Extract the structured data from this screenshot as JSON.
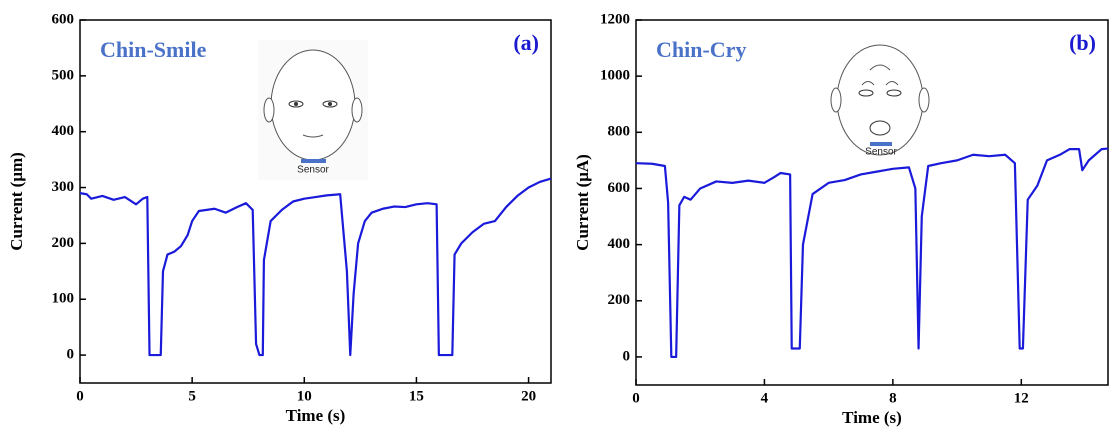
{
  "chart_data": [
    {
      "type": "line",
      "title": "Chin-Smile",
      "label": "(a)",
      "sensor_label": "Sensor",
      "x_label": "Time (s)",
      "y_label": "Current (μm)",
      "color": "#1a1adb",
      "xlim": [
        0,
        21
      ],
      "ylim": [
        -50,
        600
      ],
      "xticks": [
        0,
        5,
        10,
        15,
        20
      ],
      "yticks": [
        0,
        100,
        200,
        300,
        400,
        500,
        600
      ],
      "x": [
        0,
        0.3,
        0.5,
        1,
        1.5,
        2,
        2.5,
        2.8,
        3.0,
        3.1,
        3.6,
        3.7,
        3.9,
        4.2,
        4.5,
        4.8,
        5.0,
        5.3,
        6,
        6.5,
        7,
        7.4,
        7.7,
        7.85,
        8.0,
        8.15,
        8.2,
        8.5,
        9,
        9.5,
        10,
        10.5,
        11,
        11.6,
        11.9,
        12.05,
        12.2,
        12.4,
        12.7,
        13,
        13.5,
        14,
        14.5,
        15,
        15.5,
        15.9,
        16.0,
        16.6,
        16.7,
        17,
        17.5,
        18,
        18.5,
        19,
        19.5,
        20,
        20.5,
        21
      ],
      "values": [
        290,
        288,
        280,
        285,
        278,
        283,
        270,
        280,
        283,
        0,
        0,
        150,
        180,
        185,
        195,
        215,
        240,
        258,
        262,
        255,
        265,
        272,
        260,
        20,
        0,
        0,
        170,
        240,
        260,
        275,
        280,
        283,
        286,
        288,
        150,
        0,
        110,
        200,
        240,
        255,
        262,
        266,
        265,
        270,
        272,
        270,
        0,
        0,
        180,
        200,
        220,
        235,
        240,
        265,
        285,
        300,
        310,
        316
      ]
    },
    {
      "type": "line",
      "title": "Chin-Cry",
      "label": "(b)",
      "sensor_label": "Sensor",
      "x_label": "Time (s)",
      "y_label": "Current (μA)",
      "color": "#1a1adb",
      "xlim": [
        0,
        14.7
      ],
      "ylim": [
        -100,
        1200
      ],
      "xticks": [
        0,
        4,
        8,
        12
      ],
      "yticks": [
        0,
        200,
        400,
        600,
        800,
        1000,
        1200
      ],
      "x": [
        0,
        0.5,
        0.9,
        1.0,
        1.1,
        1.25,
        1.35,
        1.5,
        1.7,
        2,
        2.5,
        3,
        3.5,
        4,
        4.3,
        4.5,
        4.8,
        4.85,
        5.1,
        5.2,
        5.5,
        6,
        6.5,
        7,
        7.5,
        8,
        8.5,
        8.7,
        8.8,
        8.9,
        9.1,
        9.5,
        10,
        10.5,
        11,
        11.5,
        11.8,
        11.95,
        12.05,
        12.2,
        12.5,
        12.8,
        13.2,
        13.5,
        13.8,
        13.9,
        14.1,
        14.5,
        14.7
      ],
      "values": [
        690,
        688,
        680,
        550,
        0,
        0,
        540,
        570,
        560,
        600,
        625,
        620,
        628,
        620,
        640,
        655,
        650,
        30,
        30,
        400,
        580,
        620,
        630,
        650,
        660,
        670,
        675,
        600,
        30,
        500,
        680,
        690,
        700,
        720,
        715,
        720,
        690,
        30,
        30,
        560,
        610,
        700,
        720,
        740,
        740,
        665,
        700,
        740,
        742
      ]
    }
  ]
}
